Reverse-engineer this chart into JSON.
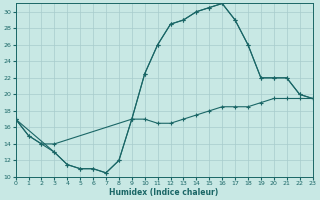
{
  "xlabel": "Humidex (Indice chaleur)",
  "xlim": [
    0,
    23
  ],
  "ylim": [
    10,
    31
  ],
  "yticks": [
    10,
    12,
    14,
    16,
    18,
    20,
    22,
    24,
    26,
    28,
    30
  ],
  "xticks": [
    0,
    1,
    2,
    3,
    4,
    5,
    6,
    7,
    8,
    9,
    10,
    11,
    12,
    13,
    14,
    15,
    16,
    17,
    18,
    19,
    20,
    21,
    22,
    23
  ],
  "bg_color": "#c8e8e4",
  "grid_color": "#a8cccc",
  "line_color": "#1a6666",
  "line1_x": [
    0,
    1,
    2,
    3,
    9,
    10,
    11,
    12,
    13,
    14,
    15,
    16,
    17,
    18,
    19,
    20,
    21,
    22,
    23
  ],
  "line1_y": [
    17,
    15,
    14,
    14,
    17,
    22.5,
    26,
    28.5,
    29,
    30,
    30.5,
    31,
    29,
    26,
    22,
    22,
    22,
    20,
    19.5
  ],
  "line2_x": [
    0,
    1,
    2,
    3,
    4,
    5,
    6,
    7,
    8,
    9,
    10,
    11,
    12,
    13,
    14,
    15,
    16,
    17,
    18,
    19,
    20,
    21,
    22,
    23
  ],
  "line2_y": [
    17,
    15,
    14,
    13,
    11.5,
    11,
    11,
    10.5,
    12,
    17,
    17,
    16.5,
    16.5,
    17,
    17.5,
    18,
    18.5,
    18.5,
    18.5,
    19,
    19.5,
    19.5,
    19.5,
    19.5
  ],
  "line3_x": [
    0,
    3,
    4,
    5,
    6,
    7,
    8,
    9,
    10,
    11,
    12,
    13,
    14,
    15,
    16,
    17,
    18,
    19,
    20,
    21,
    22,
    23
  ],
  "line3_y": [
    17,
    13,
    11.5,
    11,
    11,
    10.5,
    12,
    17,
    22.5,
    26,
    28.5,
    29,
    30,
    30.5,
    31,
    29,
    26,
    22,
    22,
    22,
    20,
    19.5
  ]
}
